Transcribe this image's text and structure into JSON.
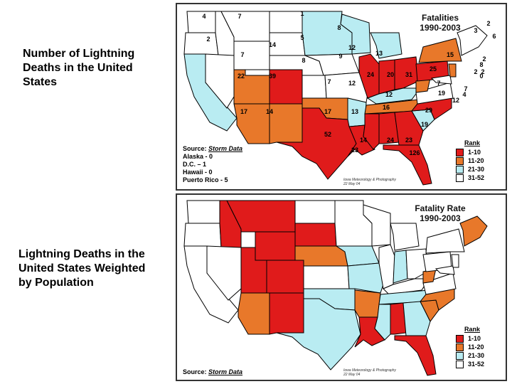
{
  "captions": {
    "top": "Number of Lightning Deaths in the United States",
    "bottom": "Lightning Deaths in the United States Weighted by Population"
  },
  "map1": {
    "title_line1": "Fatalities",
    "title_line2": "1990-2003",
    "source_label": "Source:",
    "source_name": "Storm Data",
    "notes": [
      "Alaska - 0",
      "D.C. – 1",
      "Hawaii - 0",
      "Puerto Rico - 5"
    ],
    "credit_line1": "Iowa Meteorology & Photography",
    "credit_line2": "22 May 04",
    "rank_title": "Rank",
    "rank_ranges": [
      "1-10",
      "11-20",
      "21-30",
      "31-52"
    ],
    "colors": {
      "rank1": "#e01b1b",
      "rank2": "#e8782a",
      "rank3": "#b9ecf2",
      "rank4": "#ffffff"
    },
    "labels": [
      "4",
      "7",
      "1",
      "2",
      "14",
      "5",
      "8",
      "12",
      "3",
      "2",
      "6",
      "7",
      "8",
      "9",
      "13",
      "15",
      "2",
      "8",
      "2",
      "22",
      "39",
      "0",
      "7",
      "12",
      "24",
      "20",
      "31",
      "25",
      "2",
      "7",
      "17",
      "14",
      "17",
      "13",
      "16",
      "12",
      "19",
      "7",
      "4",
      "12",
      "29",
      "52",
      "19",
      "14",
      "24",
      "23",
      "23",
      "126"
    ]
  },
  "map2": {
    "title_line1": "Fatality Rate",
    "title_line2": "1990-2003",
    "source_label": "Source:",
    "source_name": "Storm Data",
    "credit_line1": "Iowa Meteorology & Photography",
    "credit_line2": "22 May 04",
    "rank_title": "Rank",
    "rank_ranges": [
      "1-10",
      "11-20",
      "21-30",
      "31-52"
    ]
  }
}
